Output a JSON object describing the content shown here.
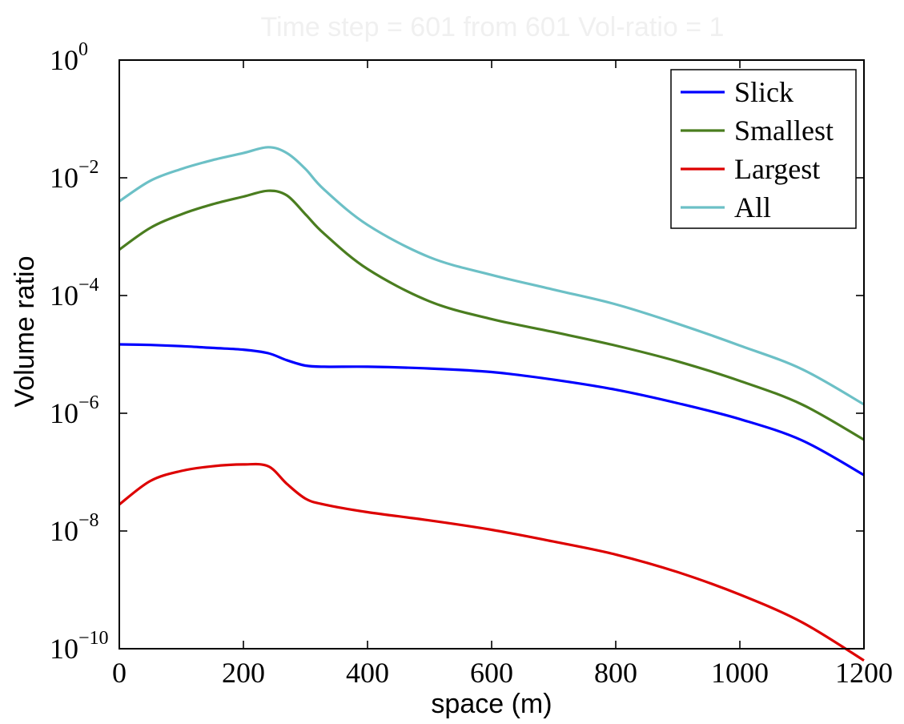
{
  "chart_data": {
    "type": "line",
    "title": "Time step = 601 from 601 Vol-ratio = 1",
    "xlabel": "space (m)",
    "ylabel": "Volume ratio",
    "xscale": "linear",
    "yscale": "log",
    "xlim": [
      0,
      1200
    ],
    "ylim_exp": [
      -10,
      0
    ],
    "xticks": [
      0,
      200,
      400,
      600,
      800,
      1000,
      1200
    ],
    "xtick_labels": [
      "0",
      "200",
      "400",
      "600",
      "800",
      "1000",
      "1200"
    ],
    "yticks_exp": [
      -10,
      -8,
      -6,
      -4,
      -2,
      0
    ],
    "ytick_base": "10",
    "ytick_exponents": [
      "−10",
      "−8",
      "−6",
      "−4",
      "−2",
      "0"
    ],
    "legend_position": "top-right",
    "x": [
      0,
      50,
      100,
      150,
      200,
      240,
      270,
      300,
      330,
      400,
      500,
      600,
      700,
      800,
      900,
      1000,
      1100,
      1200
    ],
    "series": [
      {
        "name": "Slick",
        "color": "#0000ff",
        "log10_values": [
          -4.83,
          -4.84,
          -4.86,
          -4.89,
          -4.92,
          -4.98,
          -5.1,
          -5.19,
          -5.21,
          -5.21,
          -5.24,
          -5.3,
          -5.43,
          -5.6,
          -5.83,
          -6.1,
          -6.46,
          -7.05
        ]
      },
      {
        "name": "Smallest",
        "color": "#4a7d1f",
        "log10_values": [
          -3.22,
          -2.85,
          -2.62,
          -2.45,
          -2.32,
          -2.22,
          -2.3,
          -2.62,
          -2.95,
          -3.55,
          -4.1,
          -4.4,
          -4.62,
          -4.85,
          -5.12,
          -5.45,
          -5.85,
          -6.45
        ]
      },
      {
        "name": "Largest",
        "color": "#dd0000",
        "log10_values": [
          -7.55,
          -7.15,
          -6.98,
          -6.9,
          -6.87,
          -6.9,
          -7.2,
          -7.45,
          -7.55,
          -7.68,
          -7.82,
          -7.98,
          -8.18,
          -8.4,
          -8.7,
          -9.08,
          -9.55,
          -10.2
        ]
      },
      {
        "name": "All",
        "color": "#6cc0c6",
        "log10_values": [
          -2.4,
          -2.05,
          -1.85,
          -1.7,
          -1.58,
          -1.48,
          -1.58,
          -1.85,
          -2.2,
          -2.8,
          -3.35,
          -3.65,
          -3.9,
          -4.15,
          -4.48,
          -4.85,
          -5.25,
          -5.85
        ]
      }
    ]
  }
}
